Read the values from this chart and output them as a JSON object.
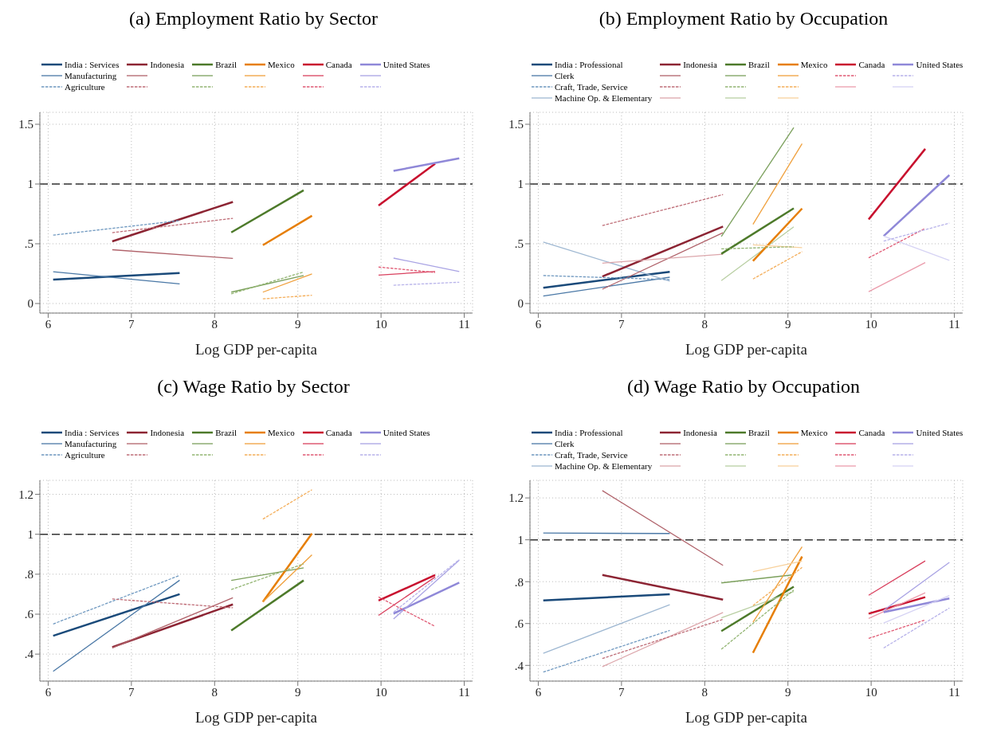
{
  "chart_data": [
    {
      "type": "line",
      "title": "(a) Employment Ratio by Sector",
      "xlabel": "Log GDP per-capita",
      "xlim": [
        5.9,
        11.1
      ],
      "xticks": [
        6,
        7,
        8,
        9,
        10,
        11
      ],
      "ylim": [
        -0.08,
        1.6
      ],
      "yticks": [
        0,
        {
          "value": 0.5,
          "label": ".5"
        },
        1,
        1.5
      ],
      "grid": true,
      "legend": "top",
      "ref_lines": [
        {
          "axis": "y",
          "value": 1,
          "color": "#333333",
          "line_style": "dashed"
        }
      ],
      "series": [
        {
          "name": "India : Services",
          "color": "#1a4a7a",
          "x": [
            6.06,
            7.58
          ],
          "values": [
            0.2,
            0.255
          ]
        },
        {
          "name": "Manufacturing",
          "color": "#4a78a6",
          "x": [
            6.06,
            7.58
          ],
          "values": [
            0.266,
            0.164
          ]
        },
        {
          "name": "Agriculture",
          "color": "#7099c0",
          "line_style": "dashed",
          "x": [
            6.06,
            7.58
          ],
          "values": [
            0.572,
            0.694
          ]
        },
        {
          "name": "Indonesia",
          "color": "#8c2433",
          "x": [
            6.77,
            8.22
          ],
          "values": [
            0.52,
            0.85
          ]
        },
        {
          "color": "#b0626a",
          "x": [
            6.77,
            8.22
          ],
          "values": [
            0.45,
            0.377
          ]
        },
        {
          "color": "#bf6e78",
          "line_style": "dashed",
          "x": [
            6.77,
            8.22
          ],
          "values": [
            0.593,
            0.713
          ]
        },
        {
          "name": "Brazil",
          "color": "#4d7a2a",
          "x": [
            8.2,
            9.07
          ],
          "values": [
            0.595,
            0.947
          ]
        },
        {
          "color": "#7ba05c",
          "x": [
            8.2,
            9.07
          ],
          "values": [
            0.095,
            0.234
          ]
        },
        {
          "color": "#93b573",
          "line_style": "dashed",
          "x": [
            8.2,
            9.07
          ],
          "values": [
            0.081,
            0.264
          ]
        },
        {
          "name": "Mexico",
          "color": "#e67e06",
          "x": [
            8.58,
            9.17
          ],
          "values": [
            0.488,
            0.734
          ]
        },
        {
          "color": "#f0a03c",
          "x": [
            8.58,
            9.17
          ],
          "values": [
            0.095,
            0.248
          ]
        },
        {
          "color": "#f4ae5a",
          "line_style": "dashed",
          "x": [
            8.58,
            9.17
          ],
          "values": [
            0.039,
            0.069
          ]
        },
        {
          "name": "Canada",
          "color": "#c8102e",
          "x": [
            9.97,
            10.65
          ],
          "values": [
            0.82,
            1.17
          ]
        },
        {
          "color": "#d9405e",
          "x": [
            9.97,
            10.65
          ],
          "values": [
            0.238,
            0.268
          ]
        },
        {
          "color": "#e05a74",
          "line_style": "dashed",
          "x": [
            9.97,
            10.65
          ],
          "values": [
            0.305,
            0.26
          ]
        },
        {
          "name": "United States",
          "color": "#8f88d8",
          "x": [
            10.15,
            10.94
          ],
          "values": [
            1.11,
            1.215
          ]
        },
        {
          "color": "#a9a3e4",
          "x": [
            10.15,
            10.94
          ],
          "values": [
            0.38,
            0.268
          ]
        },
        {
          "color": "#b8b3ea",
          "line_style": "dashed",
          "x": [
            10.15,
            10.94
          ],
          "values": [
            0.153,
            0.178
          ]
        }
      ]
    },
    {
      "type": "line",
      "title": "(b) Employment Ratio by Occupation",
      "xlabel": "Log GDP per-capita",
      "xlim": [
        5.9,
        11.1
      ],
      "xticks": [
        6,
        7,
        8,
        9,
        10,
        11
      ],
      "ylim": [
        -0.08,
        1.6
      ],
      "yticks": [
        0,
        {
          "value": 0.5,
          "label": ".5"
        },
        1,
        1.5
      ],
      "grid": true,
      "legend": "top",
      "ref_lines": [
        {
          "axis": "y",
          "value": 1,
          "color": "#333333",
          "line_style": "dashed"
        }
      ],
      "series": [
        {
          "name": "India : Professional",
          "color": "#1a4a7a",
          "x": [
            6.06,
            7.58
          ],
          "values": [
            0.132,
            0.265
          ]
        },
        {
          "name": "Clerk",
          "color": "#4a78a6",
          "x": [
            6.06,
            7.58
          ],
          "values": [
            0.062,
            0.22
          ]
        },
        {
          "name": "Craft, Trade, Service",
          "color": "#7099c0",
          "line_style": "dashed",
          "x": [
            6.06,
            7.58
          ],
          "values": [
            0.234,
            0.2
          ]
        },
        {
          "name": "Machine Op. & Elementary",
          "color": "#9fb8d2",
          "x": [
            6.06,
            7.58
          ],
          "values": [
            0.514,
            0.187
          ]
        },
        {
          "name": "Indonesia",
          "color": "#8c2433",
          "x": [
            6.77,
            8.22
          ],
          "values": [
            0.226,
            0.644
          ]
        },
        {
          "color": "#b0626a",
          "x": [
            6.77,
            8.22
          ],
          "values": [
            0.12,
            0.592
          ]
        },
        {
          "color": "#bf6e78",
          "line_style": "dashed",
          "x": [
            6.77,
            8.22
          ],
          "values": [
            0.652,
            0.912
          ]
        },
        {
          "color": "#dca6ab",
          "x": [
            6.77,
            8.22
          ],
          "values": [
            0.338,
            0.413
          ]
        },
        {
          "name": "Brazil",
          "color": "#4d7a2a",
          "x": [
            8.2,
            9.07
          ],
          "values": [
            0.416,
            0.797
          ]
        },
        {
          "color": "#7ba05c",
          "x": [
            8.2,
            9.07
          ],
          "values": [
            0.561,
            1.473
          ]
        },
        {
          "color": "#93b573",
          "line_style": "dashed",
          "x": [
            8.2,
            9.07
          ],
          "values": [
            0.457,
            0.475
          ]
        },
        {
          "color": "#b9cfa3",
          "x": [
            8.2,
            9.07
          ],
          "values": [
            0.192,
            0.642
          ]
        },
        {
          "name": "Mexico",
          "color": "#e67e06",
          "x": [
            8.58,
            9.17
          ],
          "values": [
            0.356,
            0.795
          ]
        },
        {
          "color": "#f0a03c",
          "x": [
            8.58,
            9.17
          ],
          "values": [
            0.662,
            1.338
          ]
        },
        {
          "color": "#f4ae5a",
          "line_style": "dashed",
          "x": [
            8.58,
            9.17
          ],
          "values": [
            0.205,
            0.434
          ]
        },
        {
          "color": "#f8d19c",
          "x": [
            8.58,
            9.17
          ],
          "values": [
            0.491,
            0.468
          ]
        },
        {
          "name": "Canada",
          "color": "#c8102e",
          "x": [
            9.97,
            10.65
          ],
          "values": [
            0.704,
            1.294
          ]
        },
        {
          "color": "#e05a74",
          "line_style": "dashed",
          "x": [
            9.97,
            10.65
          ],
          "values": [
            0.382,
            0.629
          ]
        },
        {
          "color": "#eb9cac",
          "x": [
            9.97,
            10.65
          ],
          "values": [
            0.099,
            0.343
          ]
        },
        {
          "name": "United States",
          "color": "#8f88d8",
          "x": [
            10.15,
            10.94
          ],
          "values": [
            0.564,
            1.075
          ]
        },
        {
          "color": "#b8b3ea",
          "line_style": "dashed",
          "x": [
            10.15,
            10.94
          ],
          "values": [
            0.522,
            0.673
          ]
        },
        {
          "color": "#d6d3f4",
          "x": [
            10.15,
            10.94
          ],
          "values": [
            0.564,
            0.361
          ]
        }
      ]
    },
    {
      "type": "line",
      "title": "(c) Wage Ratio by Sector",
      "xlabel": "Log GDP per-capita",
      "xlim": [
        5.9,
        11.1
      ],
      "xticks": [
        6,
        7,
        8,
        9,
        10,
        11
      ],
      "ylim": [
        0.265,
        1.27
      ],
      "yticks": [
        {
          "value": 0.4,
          "label": ".4"
        },
        {
          "value": 0.6,
          "label": ".6"
        },
        {
          "value": 0.8,
          "label": ".8"
        },
        1,
        1.2
      ],
      "grid": true,
      "legend": "top",
      "ref_lines": [
        {
          "axis": "y",
          "value": 1,
          "color": "#333333",
          "line_style": "dashed"
        }
      ],
      "series": [
        {
          "name": "India : Services",
          "color": "#1a4a7a",
          "x": [
            6.06,
            7.58
          ],
          "values": [
            0.492,
            0.7
          ]
        },
        {
          "name": "Manufacturing",
          "color": "#4a78a6",
          "x": [
            6.06,
            7.58
          ],
          "values": [
            0.314,
            0.77
          ]
        },
        {
          "name": "Agriculture",
          "color": "#7099c0",
          "line_style": "dashed",
          "x": [
            6.06,
            7.58
          ],
          "values": [
            0.551,
            0.794
          ]
        },
        {
          "name": "Indonesia",
          "color": "#8c2433",
          "x": [
            6.77,
            8.22
          ],
          "values": [
            0.435,
            0.649
          ]
        },
        {
          "color": "#b0626a",
          "x": [
            6.77,
            8.22
          ],
          "values": [
            0.431,
            0.682
          ]
        },
        {
          "color": "#bf6e78",
          "line_style": "dashed",
          "x": [
            6.77,
            8.22
          ],
          "values": [
            0.676,
            0.632
          ]
        },
        {
          "name": "Brazil",
          "color": "#4d7a2a",
          "x": [
            8.2,
            9.07
          ],
          "values": [
            0.518,
            0.769
          ]
        },
        {
          "color": "#7ba05c",
          "x": [
            8.2,
            9.07
          ],
          "values": [
            0.769,
            0.832
          ]
        },
        {
          "color": "#93b573",
          "line_style": "dashed",
          "x": [
            8.2,
            9.07
          ],
          "values": [
            0.723,
            0.852
          ]
        },
        {
          "name": "Mexico",
          "color": "#e67e06",
          "x": [
            8.58,
            9.17
          ],
          "values": [
            0.662,
            1.004
          ]
        },
        {
          "color": "#f0a03c",
          "x": [
            8.58,
            9.17
          ],
          "values": [
            0.662,
            0.897
          ]
        },
        {
          "color": "#f4ae5a",
          "line_style": "dashed",
          "x": [
            8.58,
            9.17
          ],
          "values": [
            1.076,
            1.223
          ]
        },
        {
          "name": "Canada",
          "color": "#c8102e",
          "x": [
            9.97,
            10.65
          ],
          "values": [
            0.668,
            0.796
          ]
        },
        {
          "color": "#d9405e",
          "x": [
            9.97,
            10.65
          ],
          "values": [
            0.594,
            0.786
          ]
        },
        {
          "color": "#e05a74",
          "line_style": "dashed",
          "x": [
            9.97,
            10.65
          ],
          "values": [
            0.686,
            0.539
          ]
        },
        {
          "name": "United States",
          "color": "#8f88d8",
          "x": [
            10.15,
            10.94
          ],
          "values": [
            0.603,
            0.758
          ]
        },
        {
          "color": "#a9a3e4",
          "x": [
            10.15,
            10.94
          ],
          "values": [
            0.576,
            0.87
          ]
        },
        {
          "color": "#b8b3ea",
          "line_style": "dashed",
          "x": [
            10.15,
            10.94
          ],
          "values": [
            0.61,
            0.873
          ]
        }
      ]
    },
    {
      "type": "line",
      "title": "(d) Wage Ratio by Occupation",
      "xlabel": "Log GDP per-capita",
      "xlim": [
        5.9,
        11.1
      ],
      "xticks": [
        6,
        7,
        8,
        9,
        10,
        11
      ],
      "ylim": [
        0.325,
        1.284
      ],
      "yticks": [
        {
          "value": 0.4,
          "label": ".4"
        },
        {
          "value": 0.6,
          "label": ".6"
        },
        {
          "value": 0.8,
          "label": ".8"
        },
        1,
        1.2
      ],
      "grid": true,
      "legend": "top",
      "ref_lines": [
        {
          "axis": "y",
          "value": 1,
          "color": "#333333",
          "line_style": "dashed"
        }
      ],
      "series": [
        {
          "name": "India : Professional",
          "color": "#1a4a7a",
          "x": [
            6.06,
            7.58
          ],
          "values": [
            0.71,
            0.74
          ]
        },
        {
          "name": "Clerk",
          "color": "#4a78a6",
          "x": [
            6.06,
            7.58
          ],
          "values": [
            1.032,
            1.03
          ]
        },
        {
          "name": "Craft, Trade, Service",
          "color": "#7099c0",
          "line_style": "dashed",
          "x": [
            6.06,
            7.58
          ],
          "values": [
            0.368,
            0.567
          ]
        },
        {
          "name": "Machine Op. & Elementary",
          "color": "#9fb8d2",
          "x": [
            6.06,
            7.58
          ],
          "values": [
            0.458,
            0.69
          ]
        },
        {
          "name": "Indonesia",
          "color": "#8c2433",
          "x": [
            6.77,
            8.22
          ],
          "values": [
            0.832,
            0.714
          ]
        },
        {
          "color": "#b0626a",
          "x": [
            6.77,
            8.22
          ],
          "values": [
            1.235,
            0.878
          ]
        },
        {
          "color": "#bf6e78",
          "line_style": "dashed",
          "x": [
            6.77,
            8.22
          ],
          "values": [
            0.433,
            0.62
          ]
        },
        {
          "color": "#dca6ab",
          "x": [
            6.77,
            8.22
          ],
          "values": [
            0.394,
            0.653
          ]
        },
        {
          "name": "Brazil",
          "color": "#4d7a2a",
          "x": [
            8.2,
            9.07
          ],
          "values": [
            0.564,
            0.776
          ]
        },
        {
          "color": "#7ba05c",
          "x": [
            8.2,
            9.07
          ],
          "values": [
            0.794,
            0.833
          ]
        },
        {
          "color": "#93b573",
          "line_style": "dashed",
          "x": [
            8.2,
            9.07
          ],
          "values": [
            0.477,
            0.76
          ]
        },
        {
          "color": "#b9cfa3",
          "x": [
            8.2,
            9.07
          ],
          "values": [
            0.627,
            0.753
          ]
        },
        {
          "name": "Mexico",
          "color": "#e67e06",
          "x": [
            8.58,
            9.17
          ],
          "values": [
            0.46,
            0.92
          ]
        },
        {
          "color": "#f0a03c",
          "x": [
            8.58,
            9.17
          ],
          "values": [
            0.606,
            0.967
          ]
        },
        {
          "color": "#f4ae5a",
          "line_style": "dashed",
          "x": [
            8.58,
            9.17
          ],
          "values": [
            0.686,
            0.868
          ]
        },
        {
          "color": "#f8d19c",
          "x": [
            8.58,
            9.17
          ],
          "values": [
            0.848,
            0.898
          ]
        },
        {
          "name": "Canada",
          "color": "#c8102e",
          "x": [
            9.97,
            10.65
          ],
          "values": [
            0.647,
            0.726
          ]
        },
        {
          "color": "#d9405e",
          "x": [
            9.97,
            10.65
          ],
          "values": [
            0.735,
            0.899
          ]
        },
        {
          "color": "#e05a74",
          "line_style": "dashed",
          "x": [
            9.97,
            10.65
          ],
          "values": [
            0.529,
            0.617
          ]
        },
        {
          "color": "#eb9cac",
          "x": [
            9.97,
            10.65
          ],
          "values": [
            0.624,
            0.747
          ]
        },
        {
          "name": "United States",
          "color": "#8f88d8",
          "x": [
            10.15,
            10.94
          ],
          "values": [
            0.654,
            0.72
          ]
        },
        {
          "color": "#a9a3e4",
          "x": [
            10.15,
            10.94
          ],
          "values": [
            0.663,
            0.892
          ]
        },
        {
          "color": "#b8b3ea",
          "line_style": "dashed",
          "x": [
            10.15,
            10.94
          ],
          "values": [
            0.483,
            0.674
          ]
        },
        {
          "color": "#d6d3f4",
          "x": [
            10.15,
            10.94
          ],
          "values": [
            0.602,
            0.734
          ]
        }
      ]
    }
  ]
}
